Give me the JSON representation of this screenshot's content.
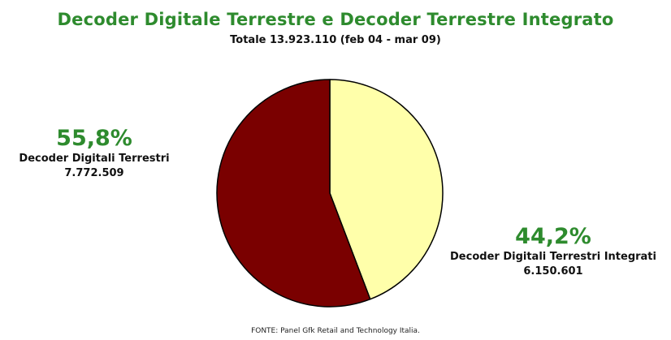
{
  "chart_data": {
    "type": "pie",
    "title": "Decoder Digitale Terrestre e Decoder Terrestre Integrato",
    "subtitle": "Totale 13.923.110 (feb 04 - mar 09)",
    "slices": [
      {
        "name": "Decoder Digitali Terrestri Integrati",
        "percent_label": "44,2%",
        "value_label": "6.150.601",
        "value": 6150601,
        "percent": 44.2,
        "color": "#ffffaa"
      },
      {
        "name": "Decoder Digitali Terrestri",
        "percent_label": "55,8%",
        "value_label": "7.772.509",
        "value": 7772509,
        "percent": 55.8,
        "color": "#7a0000"
      }
    ],
    "source": "FONTE: Panel Gfk Retail and Technology Italia."
  }
}
